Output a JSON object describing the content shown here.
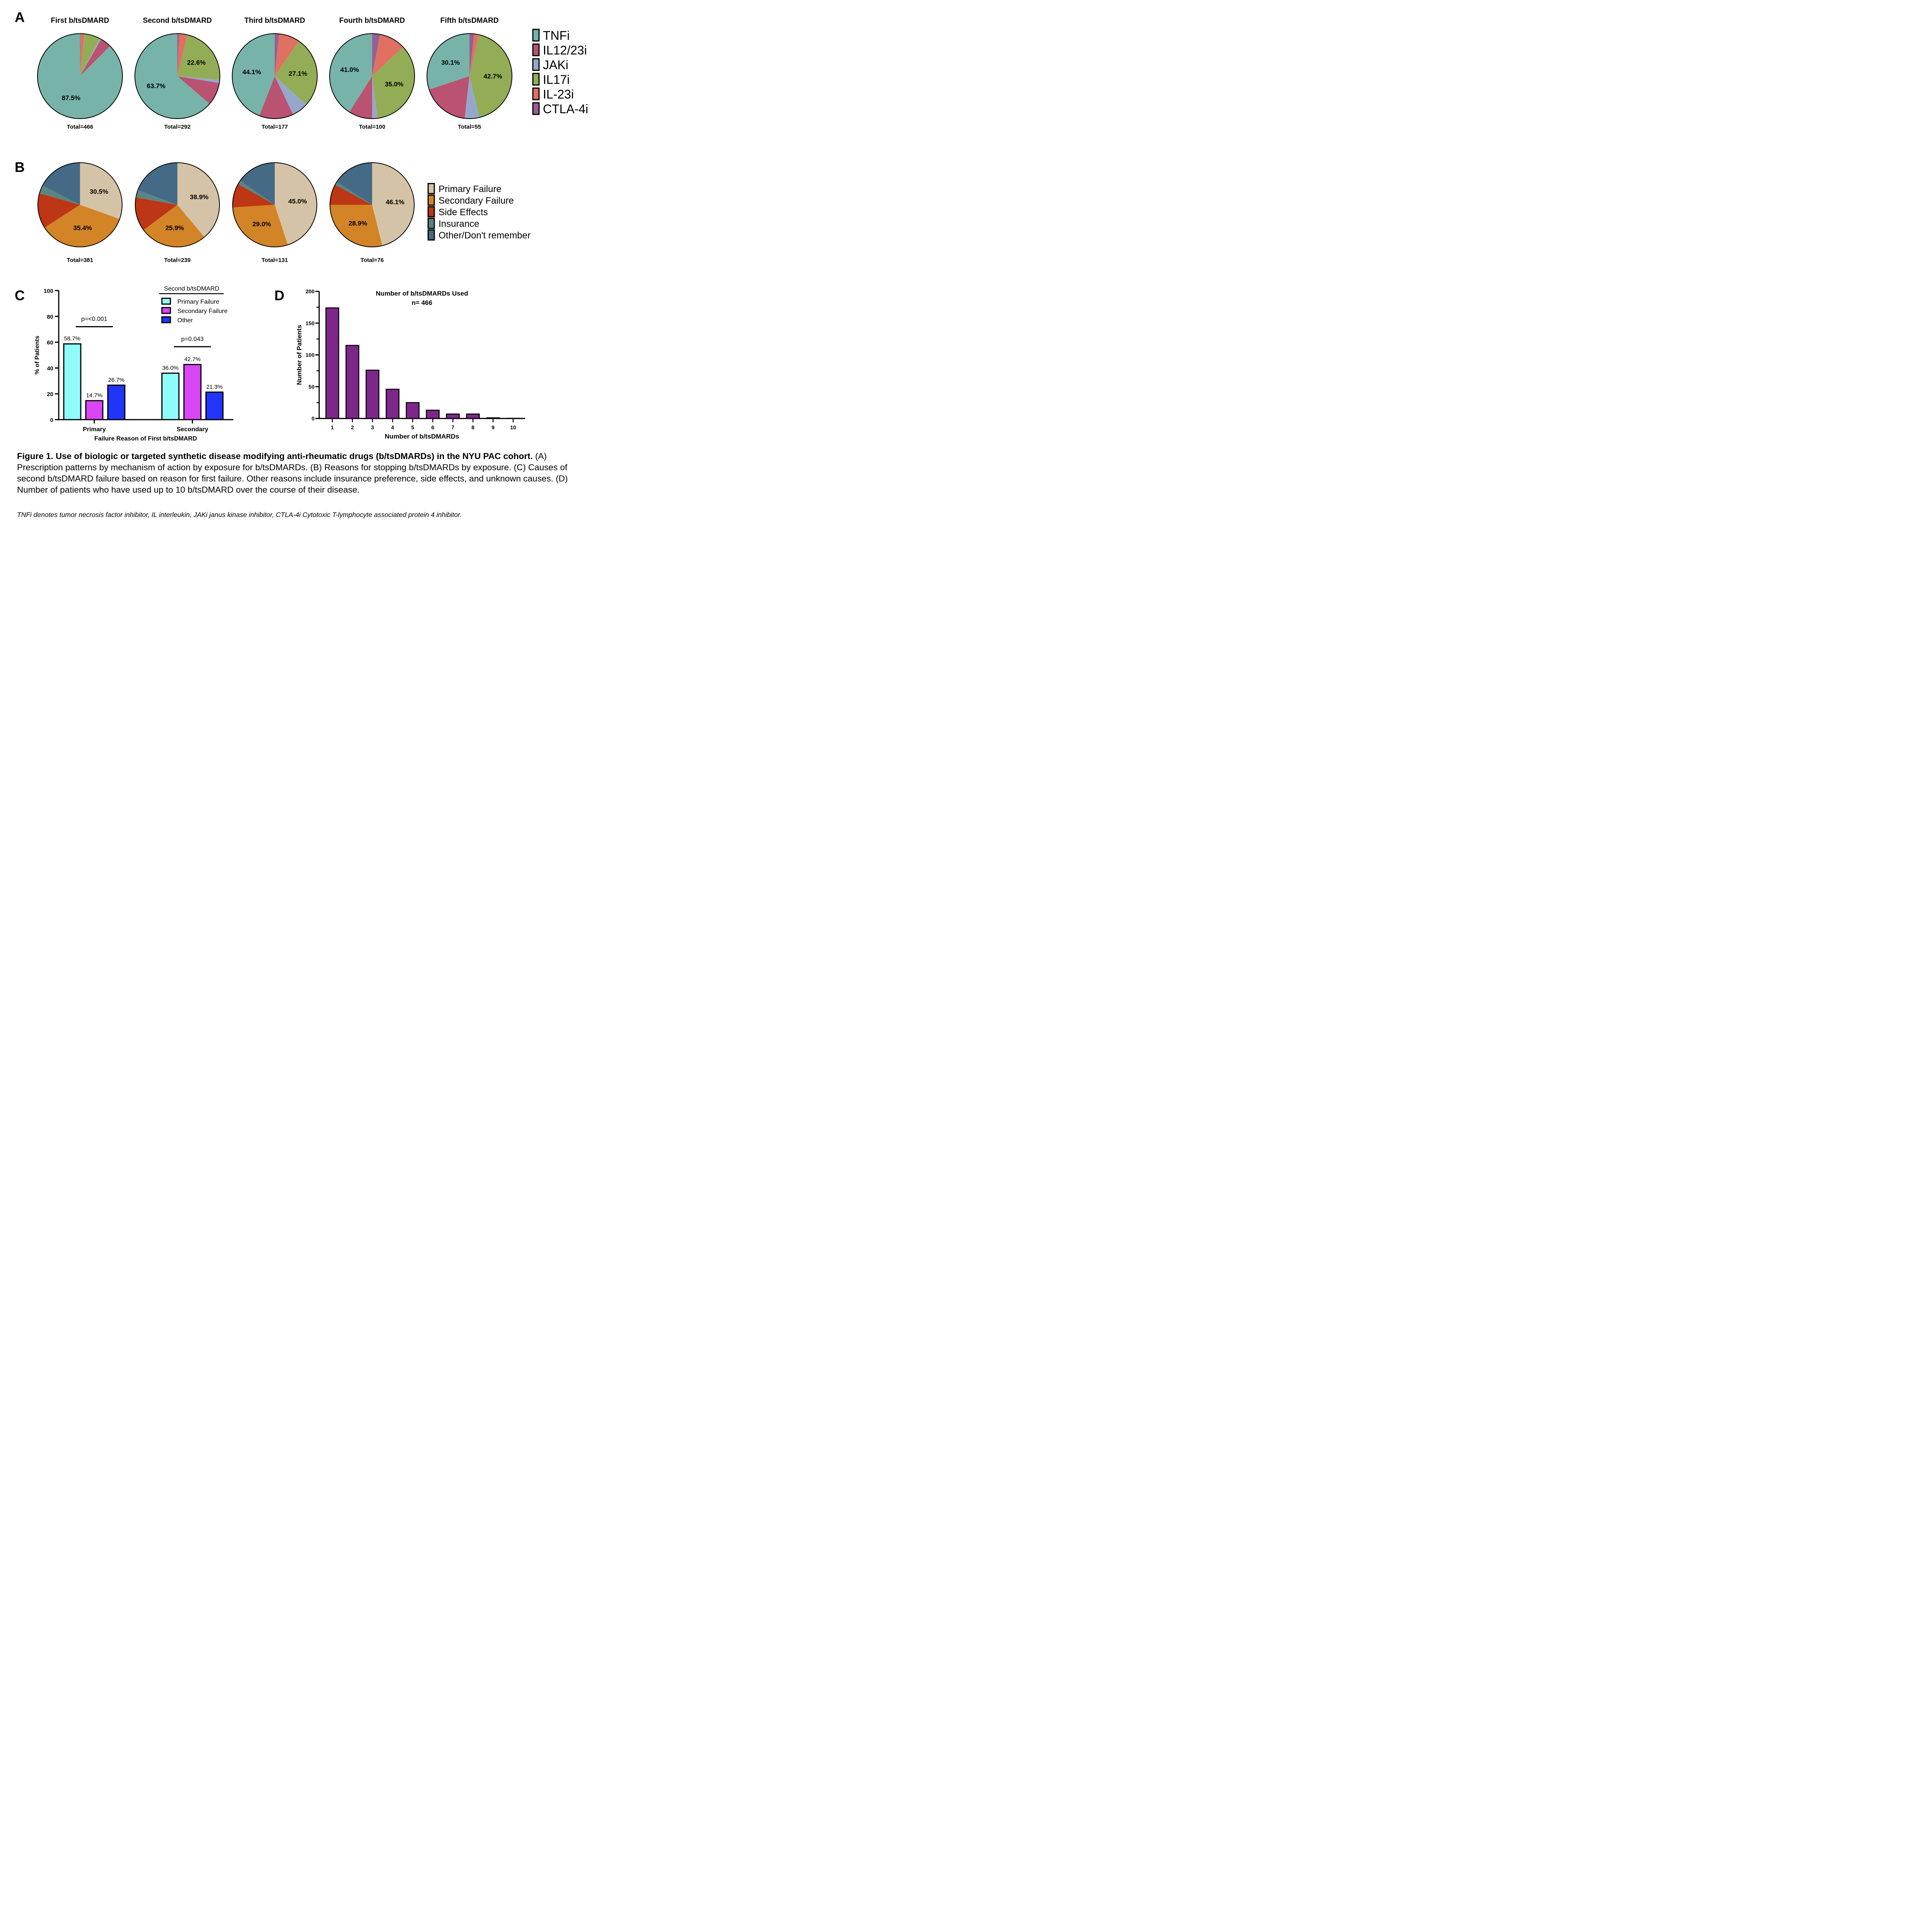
{
  "panel_letters": {
    "a": "A",
    "b": "B",
    "c": "C",
    "d": "D"
  },
  "chart_data": [
    {
      "panel": "A",
      "type": "pie",
      "description": "Prescription patterns by mechanism of action",
      "legend": [
        {
          "label": "TNFi",
          "color": "#77b3a8"
        },
        {
          "label": "IL12/23i",
          "color": "#b95371"
        },
        {
          "label": "JAKi",
          "color": "#97a7cb"
        },
        {
          "label": "IL17i",
          "color": "#93ad56"
        },
        {
          "label": "IL-23i",
          "color": "#e07162"
        },
        {
          "label": "CTLA-4i",
          "color": "#976093"
        }
      ],
      "slice_order_clockwise_from_top": [
        "CTLA-4i",
        "IL-23i",
        "IL17i",
        "JAKi",
        "IL12/23i",
        "TNFi"
      ],
      "pies": [
        {
          "title": "First b/tsDMARD",
          "total_label": "Total=466",
          "values": {
            "CTLA-4i": 0.2,
            "IL-23i": 1.5,
            "IL17i": 6.0,
            "JAKi": 0.6,
            "IL12/23i": 4.2,
            "TNFi": 87.5
          },
          "labels": [
            {
              "series": "TNFi",
              "text": "87.5%"
            }
          ]
        },
        {
          "title": "Second b/tsDMARD",
          "total_label": "Total=292",
          "values": {
            "CTLA-4i": 0.7,
            "IL-23i": 3.1,
            "IL17i": 22.6,
            "JAKi": 1.2,
            "IL12/23i": 8.7,
            "TNFi": 63.7
          },
          "labels": [
            {
              "series": "IL17i",
              "text": "22.6%"
            },
            {
              "series": "TNFi",
              "text": "63.7%"
            }
          ]
        },
        {
          "title": "Third b/tsDMARD",
          "total_label": "Total=177",
          "values": {
            "CTLA-4i": 1.7,
            "IL-23i": 7.9,
            "IL17i": 27.1,
            "JAKi": 6.2,
            "IL12/23i": 13.0,
            "TNFi": 44.1
          },
          "labels": [
            {
              "series": "TNFi",
              "text": "44.1%"
            },
            {
              "series": "IL17i",
              "text": "27.1%"
            }
          ]
        },
        {
          "title": "Fourth b/tsDMARD",
          "total_label": "Total=100",
          "values": {
            "CTLA-4i": 3.0,
            "IL-23i": 10.0,
            "IL17i": 35.0,
            "JAKi": 2.0,
            "IL12/23i": 9.0,
            "TNFi": 41.0
          },
          "labels": [
            {
              "series": "TNFi",
              "text": "41.0%"
            },
            {
              "series": "IL17i",
              "text": "35.0%"
            }
          ]
        },
        {
          "title": "Fifth b/tsDMARD",
          "total_label": "Total=55",
          "values": {
            "CTLA-4i": 1.8,
            "IL-23i": 1.8,
            "IL17i": 42.7,
            "JAKi": 5.5,
            "IL12/23i": 18.1,
            "TNFi": 30.1
          },
          "labels": [
            {
              "series": "TNFi",
              "text": "30.1%"
            },
            {
              "series": "IL17i",
              "text": "42.7%"
            }
          ]
        }
      ]
    },
    {
      "panel": "B",
      "type": "pie",
      "description": "Reasons for stopping b/tsDMARDs by exposure",
      "legend": [
        {
          "label": "Primary Failure",
          "color": "#d4c3a6"
        },
        {
          "label": "Secondary Failure",
          "color": "#d38426"
        },
        {
          "label": "Side Effects",
          "color": "#bd3615"
        },
        {
          "label": "Insurance",
          "color": "#5b8482"
        },
        {
          "label": "Other/Don't remember",
          "color": "#446a85"
        }
      ],
      "slice_order_clockwise_from_top": [
        "Primary Failure",
        "Secondary Failure",
        "Side Effects",
        "Insurance",
        "Other/Don't remember"
      ],
      "pies": [
        {
          "total_label": "Total=381",
          "values": {
            "Primary Failure": 30.5,
            "Secondary Failure": 35.4,
            "Side Effects": 13.5,
            "Insurance": 3.2,
            "Other/Don't remember": 17.4
          },
          "labels": [
            {
              "series": "Primary Failure",
              "text": "30.5%"
            },
            {
              "series": "Secondary Failure",
              "text": "35.4%"
            }
          ]
        },
        {
          "total_label": "Total=239",
          "values": {
            "Primary Failure": 38.9,
            "Secondary Failure": 25.9,
            "Side Effects": 13.0,
            "Insurance": 2.9,
            "Other/Don't remember": 19.3
          },
          "labels": [
            {
              "series": "Primary Failure",
              "text": "38.9%"
            },
            {
              "series": "Secondary Failure",
              "text": "25.9%"
            }
          ]
        },
        {
          "total_label": "Total=131",
          "values": {
            "Primary Failure": 45.0,
            "Secondary Failure": 29.0,
            "Side Effects": 9.2,
            "Insurance": 1.5,
            "Other/Don't remember": 15.3
          },
          "labels": [
            {
              "series": "Primary Failure",
              "text": "45.0%"
            },
            {
              "series": "Secondary Failure",
              "text": "29.0%"
            }
          ]
        },
        {
          "total_label": "Total=76",
          "values": {
            "Primary Failure": 46.1,
            "Secondary Failure": 28.9,
            "Side Effects": 7.9,
            "Insurance": 1.3,
            "Other/Don't remember": 15.8
          },
          "labels": [
            {
              "series": "Primary Failure",
              "text": "46.1%"
            },
            {
              "series": "Secondary Failure",
              "text": "28.9%"
            }
          ]
        }
      ]
    },
    {
      "panel": "C",
      "type": "bar",
      "legend_title": "Second b/tsDMARD",
      "categories": [
        "Primary",
        "Secondary"
      ],
      "xlabel": "Failure Reason of First b/tsDMARD",
      "ylabel": "% of Patients",
      "ylim": [
        0,
        100
      ],
      "yticks": [
        0,
        20,
        40,
        60,
        80,
        100
      ],
      "series": [
        {
          "name": "Primary Failure",
          "color": "#8ffcfc",
          "values": [
            58.7,
            36.0
          ],
          "labels": [
            "58.7%",
            "36.0%"
          ]
        },
        {
          "name": "Secondary Failure",
          "color": "#d846f5",
          "values": [
            14.7,
            42.7
          ],
          "labels": [
            "14.7%",
            "42.7%"
          ]
        },
        {
          "name": "Other",
          "color": "#2235fb",
          "values": [
            26.7,
            21.3
          ],
          "labels": [
            "26.7%",
            "21.3%"
          ]
        }
      ],
      "annotations": [
        {
          "category": "Primary",
          "text": "p=<0.001",
          "y": 72
        },
        {
          "category": "Secondary",
          "text": "p=0.043",
          "y": 56.5
        }
      ]
    },
    {
      "panel": "D",
      "type": "bar",
      "title": "Number of b/tsDMARDs Used",
      "subtitle": "n= 466",
      "categories": [
        "1",
        "2",
        "3",
        "4",
        "5",
        "6",
        "7",
        "8",
        "9",
        "10"
      ],
      "values": [
        174,
        115,
        76,
        46,
        25,
        13,
        7,
        7,
        1,
        0.3
      ],
      "color": "#7d278b",
      "xlabel": "Number of b/tsDMARDs",
      "ylabel": "Number of Patients",
      "ylim": [
        0,
        200
      ],
      "yticks": [
        0,
        50,
        100,
        150,
        200
      ],
      "minor_yticks": [
        25,
        75,
        125,
        175
      ]
    }
  ],
  "caption": {
    "bold": "Figure 1. Use of biologic or targeted synthetic disease modifying anti-rheumatic drugs (b/tsDMARDs) in the NYU PAC cohort.",
    "text": " (A) Prescription patterns by mechanism of action by exposure for b/tsDMARDs. (B) Reasons for stopping b/tsDMARDs by exposure. (C) Causes of second b/tsDMARD failure based on reason for first failure. Other reasons include insurance preference, side effects, and unknown causes. (D) Number of patients who have used up to 10 b/tsDMARD over the course of their disease.",
    "footnote": "TNFi denotes tumor necrosis factor inhibitor, IL interleukin, JAKi janus kinase inhibitor, CTLA-4i Cytotoxic T-lymphocyte associated protein 4 inhibitor."
  }
}
